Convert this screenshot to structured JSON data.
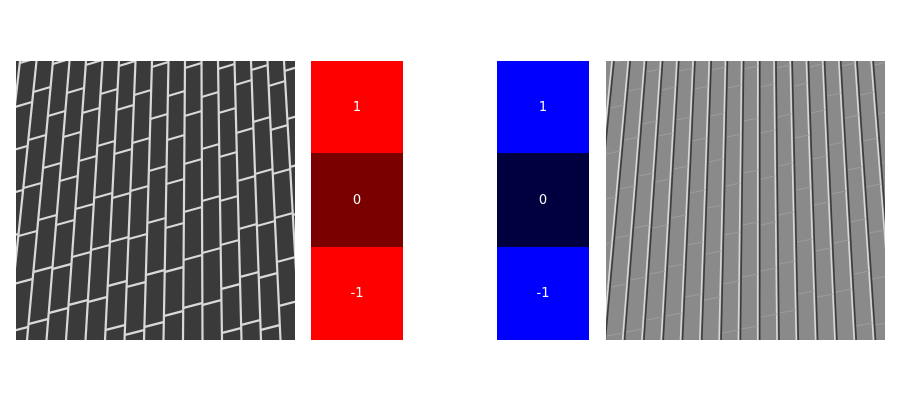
{
  "kernels": {
    "red": {
      "values": [
        "1",
        "0",
        "-1"
      ],
      "colors": [
        "#ff0000",
        "#7a0000",
        "#ff0000"
      ]
    },
    "blue": {
      "values": [
        "1",
        "0",
        "-1"
      ],
      "colors": [
        "#0000ff",
        "#00003f",
        "#0000ff"
      ]
    }
  },
  "images": {
    "left": {
      "icon": "brick-wall-grayscale",
      "mortar_color": "#d9d9d9",
      "brick_color": "#3a3a3a"
    },
    "right": {
      "icon": "brick-wall-edge-filtered",
      "base_color": "#8a8a8a",
      "light_edge": "#d8d8d8",
      "dark_edge": "#3c3c3c"
    }
  }
}
